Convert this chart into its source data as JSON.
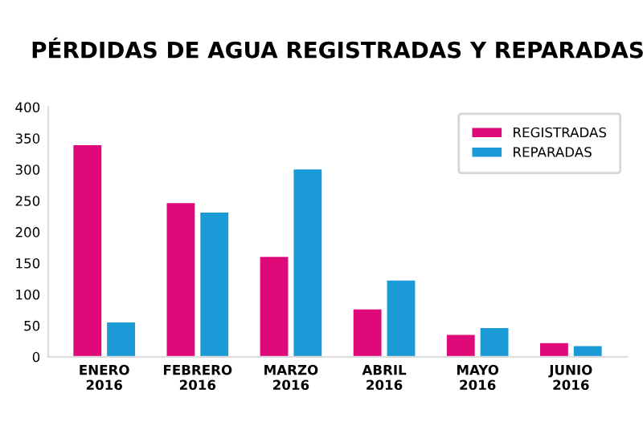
{
  "chart_data": {
    "type": "bar",
    "title": "PÉRDIDAS DE AGUA REGISTRADAS Y REPARADAS",
    "categories": [
      "ENERO\n2016",
      "FEBRERO\n2016",
      "MARZO\n2016",
      "ABRIL\n2016",
      "MAYO\n2016",
      "JUNIO\n2016"
    ],
    "series": [
      {
        "name": "REGISTRADAS",
        "color": "#e0097a",
        "values": [
          339,
          246,
          160,
          76,
          35,
          22
        ]
      },
      {
        "name": "REPARADAS",
        "color": "#1a9ad6",
        "values": [
          55,
          231,
          300,
          122,
          46,
          17
        ]
      }
    ],
    "ylim": [
      0,
      400
    ],
    "yticks": [
      0,
      50,
      100,
      150,
      200,
      250,
      300,
      350,
      400
    ],
    "grid": false,
    "legend": "top right"
  }
}
